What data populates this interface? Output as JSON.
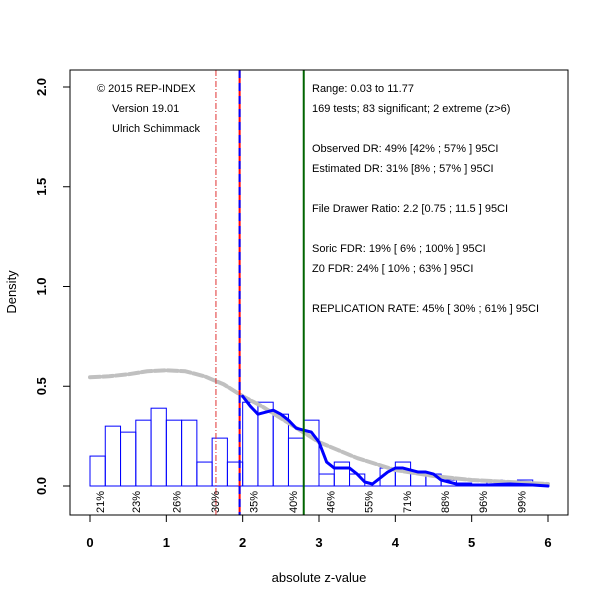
{
  "chart_data": {
    "type": "bar",
    "title": "",
    "xlabel": "absolute z-value",
    "ylabel": "Density",
    "xlim": [
      0,
      6
    ],
    "ylim": [
      0,
      2
    ],
    "x_ticks": [
      "0",
      "1",
      "2",
      "3",
      "4",
      "5",
      "6"
    ],
    "y_ticks": [
      "0.0",
      "0.5",
      "1.0",
      "1.5",
      "2.0"
    ],
    "grid": false,
    "histogram": {
      "bin_width": 0.2,
      "bin_starts": [
        0,
        0.2,
        0.4,
        0.6,
        0.8,
        1.0,
        1.2,
        1.4,
        1.6,
        1.8,
        2.0,
        2.2,
        2.4,
        2.6,
        2.8,
        3.0,
        3.2,
        3.4,
        3.6,
        3.8,
        4.0,
        4.2,
        4.4,
        4.6,
        4.8,
        5.0,
        5.2,
        5.4,
        5.6,
        5.8
      ],
      "density": [
        0.15,
        0.3,
        0.27,
        0.33,
        0.39,
        0.33,
        0.33,
        0.12,
        0.24,
        0.12,
        0.42,
        0.42,
        0.36,
        0.24,
        0.33,
        0.06,
        0.12,
        0.06,
        0.0,
        0.09,
        0.12,
        0.06,
        0.06,
        0.03,
        0.015,
        0.01,
        0.03,
        0.01,
        0.03,
        0.01
      ],
      "color": "#0000ff"
    },
    "series": [
      {
        "name": "observed density",
        "color": "#0000ff",
        "x": [
          2.0,
          2.1,
          2.2,
          2.3,
          2.4,
          2.5,
          2.6,
          2.7,
          2.8,
          2.9,
          3.0,
          3.1,
          3.2,
          3.3,
          3.4,
          3.5,
          3.6,
          3.7,
          3.8,
          3.9,
          4.0,
          4.1,
          4.2,
          4.3,
          4.4,
          4.5,
          4.6,
          4.7,
          4.8,
          5.0,
          5.2,
          5.5,
          5.8,
          6.0
        ],
        "y": [
          0.45,
          0.4,
          0.36,
          0.37,
          0.38,
          0.36,
          0.33,
          0.29,
          0.28,
          0.27,
          0.22,
          0.12,
          0.09,
          0.09,
          0.09,
          0.06,
          0.02,
          0.01,
          0.04,
          0.07,
          0.09,
          0.09,
          0.08,
          0.07,
          0.07,
          0.06,
          0.03,
          0.02,
          0.01,
          0.005,
          0.005,
          0.01,
          0.005,
          0.0
        ]
      },
      {
        "name": "fitted density",
        "color": "#c0c0c0",
        "x": [
          0,
          0.25,
          0.5,
          0.75,
          1.0,
          1.25,
          1.5,
          1.75,
          2.0,
          2.25,
          2.5,
          2.75,
          3.0,
          3.25,
          3.5,
          3.75,
          4.0,
          4.5,
          5.0,
          5.5,
          6.0
        ],
        "y": [
          0.545,
          0.55,
          0.56,
          0.575,
          0.58,
          0.575,
          0.55,
          0.51,
          0.45,
          0.4,
          0.34,
          0.28,
          0.22,
          0.18,
          0.14,
          0.11,
          0.08,
          0.05,
          0.03,
          0.02,
          0.01
        ]
      }
    ],
    "vlines": [
      {
        "x": 1.65,
        "color": "#e03030",
        "style": "dashdot",
        "name": "alpha-010-line"
      },
      {
        "x": 1.96,
        "color": "#ff0000",
        "style": "solid",
        "name": "significance-line"
      },
      {
        "x": 1.96,
        "color": "#0000ff",
        "style": "dashed",
        "name": "selection-line"
      },
      {
        "x": 2.8,
        "color": "#006400",
        "style": "solid",
        "name": "power-line"
      }
    ],
    "power_labels": {
      "x": [
        0.13,
        0.6,
        1.13,
        1.64,
        2.14,
        2.66,
        3.15,
        3.65,
        4.15,
        4.65,
        5.15,
        5.65
      ],
      "labels": [
        "21%",
        "23%",
        "26%",
        "30%",
        "35%",
        "40%",
        "46%",
        "55%",
        "71%",
        "88%",
        "96%",
        "99%"
      ]
    },
    "annotations_left": [
      "© 2015 REP-INDEX",
      "Version 19.01",
      "Ulrich Schimmack"
    ],
    "annotations_right": [
      "Range: 0.03 to 11.77",
      "169 tests; 83 significant; 2 extreme (z>6)",
      "Observed DR: 49% [42% ; 57% ] 95CI",
      "Estimated DR: 31% [8% ; 57% ] 95CI",
      "File Drawer Ratio: 2.2 [0.75 ; 11.5 ] 95CI",
      "Soric FDR: 19% [ 6% ; 100% ] 95CI",
      "Z0 FDR: 24% [ 10% ; 63% ] 95CI",
      "REPLICATION RATE: 45% [ 30% ; 61% ] 95CI"
    ]
  }
}
